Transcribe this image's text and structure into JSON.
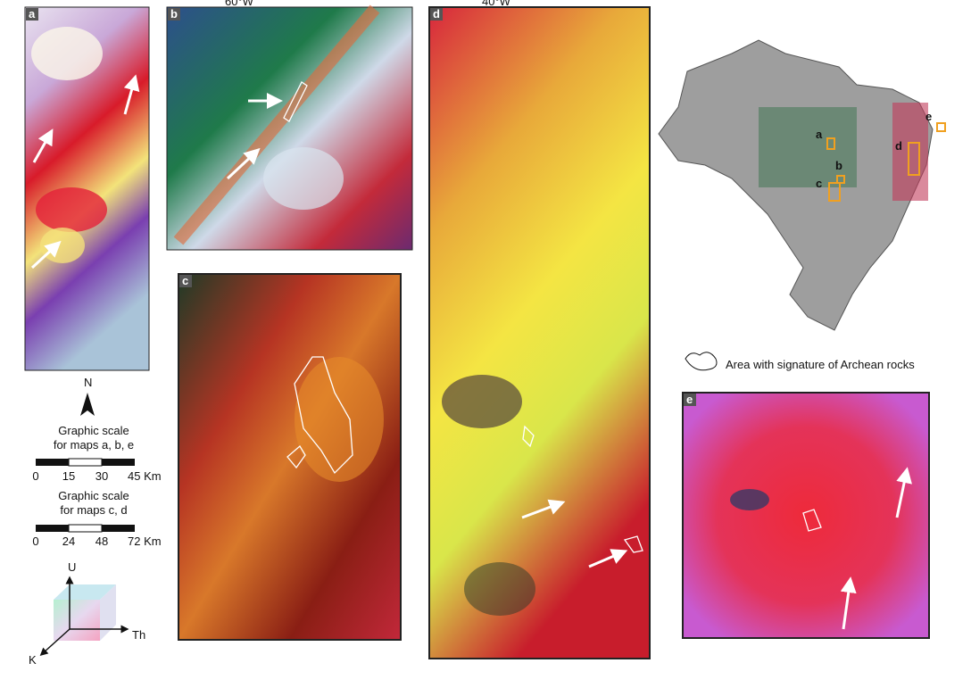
{
  "panels": [
    {
      "label": "a"
    },
    {
      "label": "b"
    },
    {
      "label": "c"
    },
    {
      "label": "d"
    },
    {
      "label": "e"
    }
  ],
  "meridians": [
    "60°W",
    "40°W"
  ],
  "north": "N",
  "scales": [
    {
      "title": [
        "Graphic scale",
        "for maps a, b, e"
      ],
      "ticks": [
        "0",
        "15",
        "30",
        "45 Km"
      ]
    },
    {
      "title": [
        "Graphic scale",
        "for maps c, d"
      ],
      "ticks": [
        "0",
        "24",
        "48",
        "72 Km"
      ]
    }
  ],
  "inset_labels": [
    "a",
    "b",
    "c",
    "d",
    "e"
  ],
  "legend": "Area with signature of Archean rocks",
  "cube_axes": [
    "U",
    "Th",
    "K"
  ]
}
